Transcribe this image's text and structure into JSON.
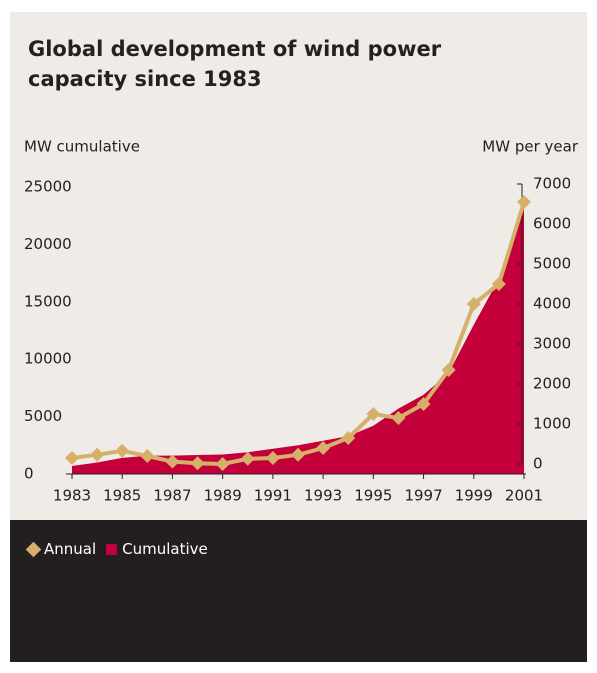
{
  "chart_data": {
    "type": "line",
    "title": "Global development of wind power capacity since 1983",
    "y_label": "MW cumulative",
    "y2_label": "MW per year",
    "x": [
      1983,
      1984,
      1985,
      1986,
      1987,
      1988,
      1989,
      1990,
      1991,
      1992,
      1993,
      1994,
      1995,
      1996,
      1997,
      1998,
      1999,
      2000,
      2001
    ],
    "xlim": [
      1983,
      2001
    ],
    "xticks": [
      1983,
      1985,
      1987,
      1989,
      1991,
      1993,
      1995,
      1997,
      1999,
      2001
    ],
    "ylim": [
      0,
      25000
    ],
    "yticks": [
      0,
      5000,
      10000,
      15000,
      20000,
      25000
    ],
    "y2lim": [
      0,
      7000
    ],
    "y2ticks": [
      0,
      1000,
      2000,
      3000,
      4000,
      5000,
      6000,
      7000
    ],
    "series": [
      {
        "name": "Annual",
        "color": "#d6b06a",
        "axis": "y2",
        "marker": "diamond",
        "values": [
          150,
          230,
          330,
          200,
          60,
          20,
          0,
          130,
          150,
          230,
          400,
          650,
          1250,
          1150,
          1500,
          2350,
          4000,
          4500,
          6550
        ]
      },
      {
        "name": "Cumulative",
        "color": "#c4003b",
        "style": "area",
        "values": [
          700,
          1000,
          1400,
          1600,
          1600,
          1650,
          1700,
          1900,
          2200,
          2500,
          2900,
          3300,
          4200,
          5700,
          6900,
          8800,
          13000,
          17000,
          23500
        ]
      }
    ]
  }
}
